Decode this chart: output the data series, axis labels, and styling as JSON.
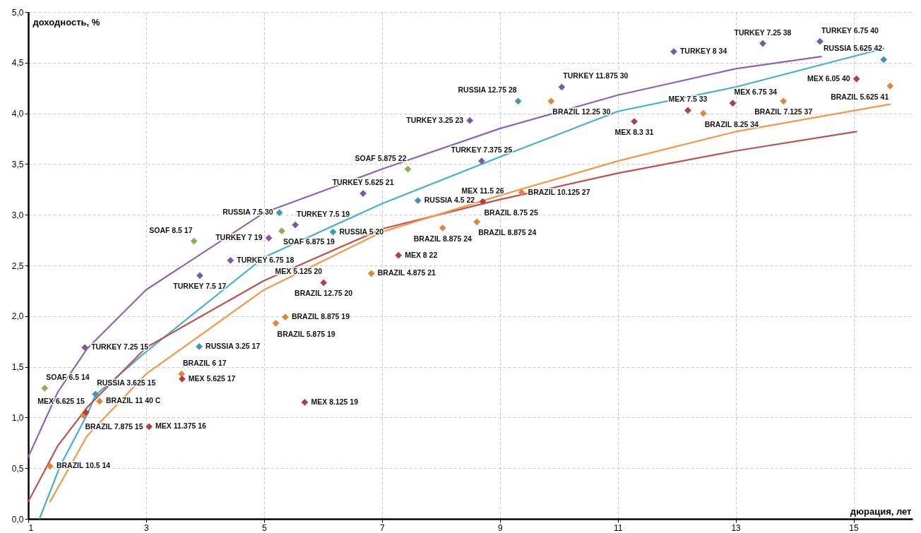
{
  "chart_data": {
    "type": "scatter",
    "xlabel": "дюрация, лет",
    "ylabel": "доходность, %",
    "xlim": [
      1,
      16
    ],
    "xticks": [
      1,
      3,
      5,
      7,
      9,
      11,
      13,
      15
    ],
    "ylim": [
      0,
      5
    ],
    "yticks": [
      {
        "value": 0,
        "label": "0,0"
      },
      {
        "value": 0.5,
        "label": "0,5"
      },
      {
        "value": 1,
        "label": "1,0"
      },
      {
        "value": 1.5,
        "label": "1,5"
      },
      {
        "value": 2,
        "label": "2,0"
      },
      {
        "value": 2.5,
        "label": "2,5"
      },
      {
        "value": 3,
        "label": "3,0"
      },
      {
        "value": 3.5,
        "label": "3,5"
      },
      {
        "value": 4,
        "label": "4,0"
      },
      {
        "value": 4.5,
        "label": "4,5"
      },
      {
        "value": 5,
        "label": "5,0"
      }
    ],
    "grid": true,
    "series": [
      {
        "type": "scatter",
        "marker": "diamond",
        "color": "#7a5c9e",
        "x": [
          1.96,
          3.91,
          4.43,
          5.08,
          5.53,
          6.68,
          8.49,
          8.69,
          10.05,
          11.95,
          13.46,
          14.43
        ],
        "values": [
          1.69,
          2.4,
          2.55,
          2.77,
          2.9,
          3.21,
          3.93,
          3.53,
          4.26,
          4.61,
          4.69,
          4.71
        ]
      },
      {
        "type": "scatter",
        "marker": "diamond",
        "color": "#3b9ab2",
        "x": [
          2.14,
          3.9,
          5.26,
          6.17,
          7.61,
          9.31,
          15.51
        ],
        "values": [
          1.23,
          1.7,
          3.02,
          2.83,
          3.14,
          4.12,
          4.53
        ]
      },
      {
        "type": "scatter",
        "marker": "diamond",
        "color": "#e0853a",
        "x": [
          1.37,
          1.94,
          2.21,
          3.6,
          5.2,
          5.36,
          6.82,
          8.03,
          8.61,
          9.37,
          9.87,
          12.45,
          13.81,
          15.62
        ],
        "values": [
          0.52,
          1.02,
          1.16,
          1.43,
          1.93,
          1.99,
          2.42,
          2.87,
          2.93,
          3.22,
          4.12,
          4.0,
          4.12,
          4.27
        ]
      },
      {
        "type": "scatter",
        "marker": "diamond",
        "color": "#b0413e",
        "x": [
          1.98,
          3.05,
          3.61,
          5.69,
          6.01,
          7.28,
          8.71,
          11.28,
          12.19,
          12.95,
          15.05
        ],
        "values": [
          1.05,
          0.91,
          1.38,
          1.15,
          2.33,
          2.6,
          3.13,
          3.92,
          4.03,
          4.1,
          4.34
        ]
      },
      {
        "type": "scatter",
        "marker": "diamond",
        "color": "#8db04a",
        "x": [
          1.28,
          3.81,
          5.3,
          7.44
        ],
        "values": [
          1.29,
          2.74,
          2.84,
          3.45
        ]
      },
      {
        "type": "line",
        "color": "#8e63b5",
        "x": [
          1,
          1.5,
          2,
          3,
          5,
          7,
          9,
          11,
          13,
          14.45
        ],
        "values": [
          0.61,
          1.25,
          1.68,
          2.26,
          3.02,
          3.45,
          3.85,
          4.18,
          4.44,
          4.56
        ]
      },
      {
        "type": "line",
        "color": "#3fb1cf",
        "x": [
          1.19,
          1.54,
          2,
          2.14,
          3,
          5,
          7,
          9,
          11,
          13,
          15.51
        ],
        "values": [
          0,
          0.52,
          1.03,
          1.22,
          1.65,
          2.58,
          3.11,
          3.57,
          4.02,
          4.26,
          4.64
        ]
      },
      {
        "type": "line",
        "color": "#c0504d",
        "x": [
          1,
          1.5,
          2,
          3,
          5,
          7,
          9,
          11,
          13,
          15.05
        ],
        "values": [
          0.17,
          0.72,
          1.1,
          1.69,
          2.35,
          2.86,
          3.15,
          3.41,
          3.63,
          3.82
        ]
      },
      {
        "type": "line",
        "color": "#f79646",
        "x": [
          1.37,
          2,
          3,
          5,
          7,
          9,
          11,
          13,
          15.62
        ],
        "values": [
          0.17,
          0.82,
          1.43,
          2.26,
          2.83,
          3.19,
          3.53,
          3.82,
          4.09
        ]
      }
    ],
    "annotations": [
      {
        "text": "TURKEY 7.25 15",
        "x": 1.96,
        "y": 1.69
      },
      {
        "text": "TURKEY 7.5 17",
        "x": 3.91,
        "y": 2.4
      },
      {
        "text": "TURKEY 6.75 18",
        "x": 4.43,
        "y": 2.55
      },
      {
        "text": "TURKEY 7 19",
        "x": 5.08,
        "y": 2.77
      },
      {
        "text": "TURKEY 7.5 19",
        "x": 5.53,
        "y": 2.9
      },
      {
        "text": "TURKEY 5.625 21",
        "x": 6.68,
        "y": 3.21
      },
      {
        "text": "TURKEY 3.25 23",
        "x": 8.49,
        "y": 3.93
      },
      {
        "text": "TURKEY 7.375 25",
        "x": 8.69,
        "y": 3.53
      },
      {
        "text": "TURKEY 11.875 30",
        "x": 10.05,
        "y": 4.26
      },
      {
        "text": "TURKEY 8 34",
        "x": 11.95,
        "y": 4.61
      },
      {
        "text": "TURKEY 7.25 38",
        "x": 13.46,
        "y": 4.69
      },
      {
        "text": "TURKEY 6.75 40",
        "x": 14.43,
        "y": 4.71
      },
      {
        "text": "RUSSIA 3.625 15",
        "x": 2.14,
        "y": 1.23
      },
      {
        "text": "RUSSIA 3.25 17",
        "x": 3.9,
        "y": 1.7
      },
      {
        "text": "RUSSIA 7.5 30",
        "x": 5.26,
        "y": 3.02
      },
      {
        "text": "RUSSIA 5 20",
        "x": 6.17,
        "y": 2.83
      },
      {
        "text": "RUSSIA 4.5 22",
        "x": 7.61,
        "y": 3.14
      },
      {
        "text": "RUSSIA 12.75 28",
        "x": 9.31,
        "y": 4.12
      },
      {
        "text": "RUSSIA 5.625 42",
        "x": 15.51,
        "y": 4.53
      },
      {
        "text": "MEX 6.625 15",
        "x": 1.98,
        "y": 1.05
      },
      {
        "text": "MEX 11.375 16",
        "x": 3.05,
        "y": 0.91
      },
      {
        "text": "MEX 5.625 17",
        "x": 3.61,
        "y": 1.38
      },
      {
        "text": "MEX 8.125 19",
        "x": 5.69,
        "y": 1.15
      },
      {
        "text": "MEX 5.125 20",
        "x": 6.01,
        "y": 2.33
      },
      {
        "text": "MEX 8 22",
        "x": 7.28,
        "y": 2.6
      },
      {
        "text": "MEX 11.5 26",
        "x": 8.71,
        "y": 3.13
      },
      {
        "text": "MEX 8.3 31",
        "x": 11.28,
        "y": 3.92
      },
      {
        "text": "MEX 7.5 33",
        "x": 12.19,
        "y": 4.03
      },
      {
        "text": "MEX 6.75 34",
        "x": 12.95,
        "y": 4.1
      },
      {
        "text": "MEX 6.05 40",
        "x": 15.05,
        "y": 4.34
      },
      {
        "text": "BRAZIL 10.5 14",
        "x": 1.37,
        "y": 0.52
      },
      {
        "text": "BRAZIL 7.875 15",
        "x": 1.94,
        "y": 1.02
      },
      {
        "text": "BRAZIL 11 40 C",
        "x": 2.21,
        "y": 1.16
      },
      {
        "text": "BRAZIL 6 17",
        "x": 3.6,
        "y": 1.43
      },
      {
        "text": "BRAZIL 5.875 19",
        "x": 5.2,
        "y": 1.93
      },
      {
        "text": "BRAZIL 8.875 19",
        "x": 5.36,
        "y": 1.99
      },
      {
        "text": "BRAZIL 12.75 20",
        "x": 6.01,
        "y": 2.33
      },
      {
        "text": "BRAZIL 4.875 21",
        "x": 6.82,
        "y": 2.42
      },
      {
        "text": "BRAZIL 8.875 24",
        "x": 8.03,
        "y": 2.87
      },
      {
        "text": "BRAZIL 8.875 24",
        "x": 8.61,
        "y": 2.93
      },
      {
        "text": "BRAZIL 8.75 25",
        "x": 8.71,
        "y": 3.13
      },
      {
        "text": "BRAZIL 10.125 27",
        "x": 9.37,
        "y": 3.22
      },
      {
        "text": "BRAZIL 12.25 30",
        "x": 9.87,
        "y": 4.12
      },
      {
        "text": "BRAZIL 8.25 34",
        "x": 12.45,
        "y": 4.0
      },
      {
        "text": "BRAZIL 7.125 37",
        "x": 13.81,
        "y": 4.12
      },
      {
        "text": "BRAZIL 5.625 41",
        "x": 15.62,
        "y": 4.27
      },
      {
        "text": "SOAF 6.5 14",
        "x": 1.28,
        "y": 1.29
      },
      {
        "text": "SOAF 8.5 17",
        "x": 3.81,
        "y": 2.74
      },
      {
        "text": "SOAF 6.875 19",
        "x": 5.3,
        "y": 2.84
      },
      {
        "text": "SOAF 5.875 22",
        "x": 7.44,
        "y": 3.45
      }
    ]
  }
}
